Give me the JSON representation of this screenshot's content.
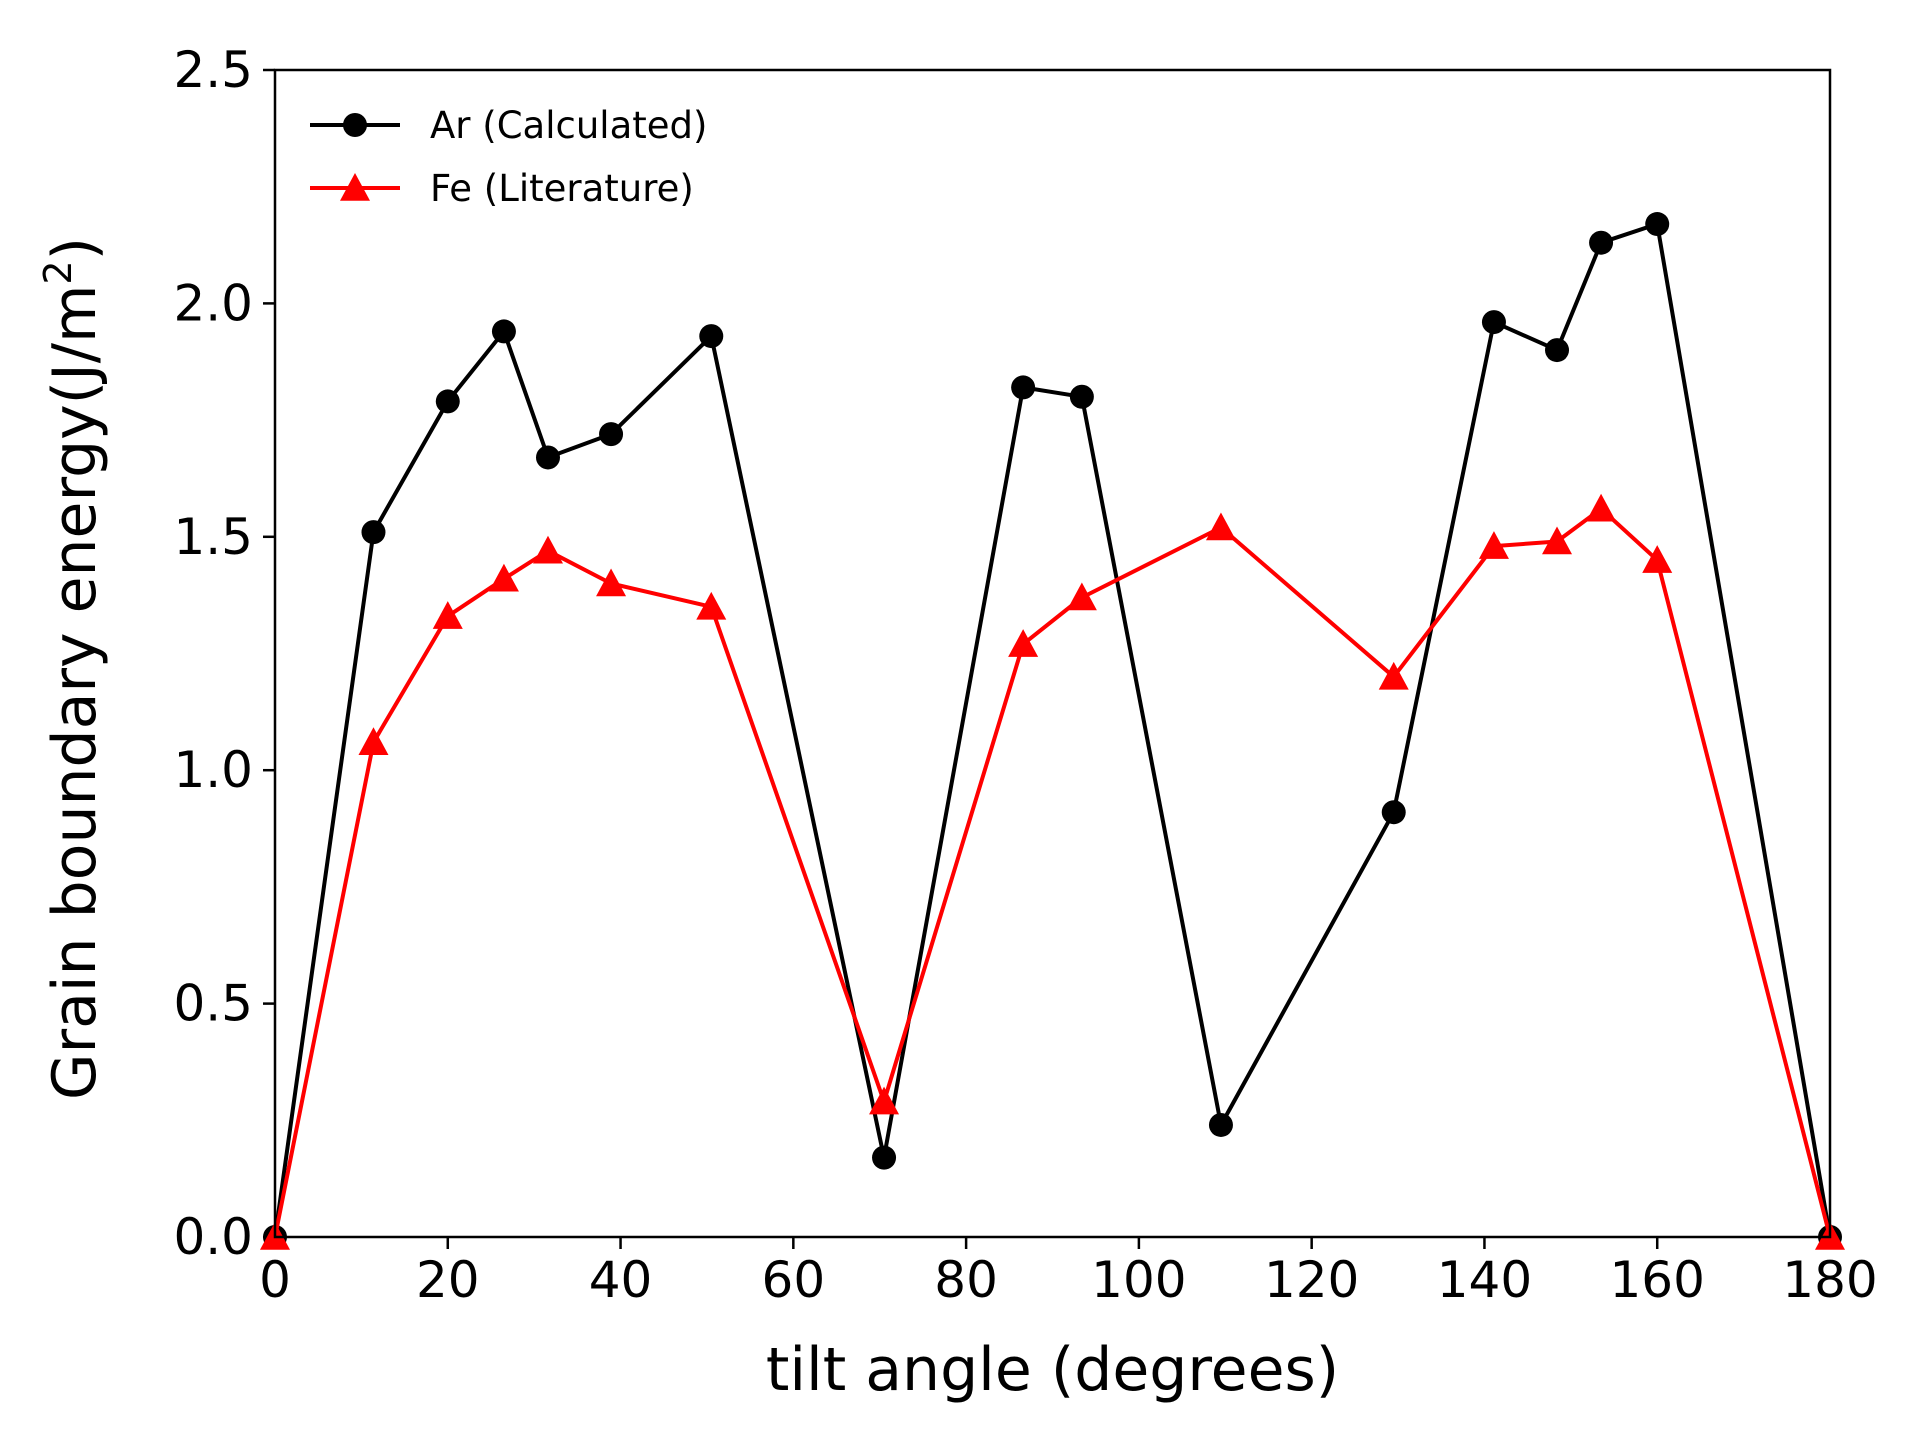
{
  "chart_data": {
    "type": "line",
    "title": "",
    "xlabel": "tilt angle (degrees)",
    "ylabel": "Grain boundary energy(J/m",
    "ylabel_superscript": "2",
    "ylabel_close": ")",
    "xlim": [
      0,
      180
    ],
    "ylim": [
      0,
      2.5
    ],
    "xticks": [
      "0",
      "20",
      "40",
      "60",
      "80",
      "100",
      "120",
      "140",
      "160",
      "180"
    ],
    "yticks": [
      "0.0",
      "0.5",
      "1.0",
      "1.5",
      "2.0",
      "2.5"
    ],
    "grid": false,
    "legend_position": "top-left",
    "series": [
      {
        "name": "Ar (Calculated)",
        "color": "#000000",
        "marker": "circle",
        "x": [
          0,
          11.4,
          20.0,
          26.5,
          31.6,
          38.9,
          50.5,
          70.5,
          86.6,
          93.4,
          109.5,
          129.5,
          141.1,
          148.4,
          153.5,
          160.0,
          180
        ],
        "y": [
          0.0,
          1.51,
          1.79,
          1.94,
          1.67,
          1.72,
          1.93,
          0.17,
          1.82,
          1.8,
          0.24,
          0.91,
          1.96,
          1.9,
          2.13,
          2.17,
          0.0
        ]
      },
      {
        "name": "Fe (Literature)",
        "color": "#ff0000",
        "marker": "triangle",
        "x": [
          0,
          11.4,
          20.0,
          26.5,
          31.6,
          38.9,
          50.5,
          70.5,
          86.6,
          93.4,
          109.5,
          129.5,
          141.1,
          148.4,
          153.5,
          160.0,
          180
        ],
        "y": [
          0.0,
          1.06,
          1.33,
          1.41,
          1.47,
          1.4,
          1.35,
          0.29,
          1.27,
          1.37,
          1.52,
          1.2,
          1.48,
          1.49,
          1.56,
          1.45,
          0.0
        ]
      }
    ]
  }
}
